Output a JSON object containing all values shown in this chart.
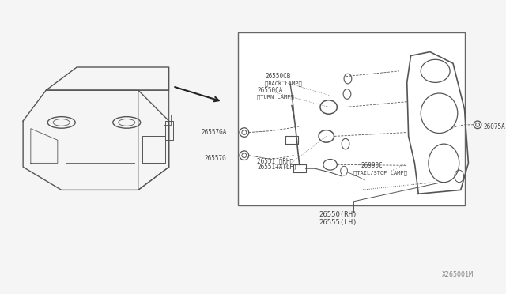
{
  "bg_color": "#f0f0f0",
  "line_color": "#555555",
  "text_color": "#444444",
  "fig_width": 6.4,
  "fig_height": 3.72,
  "diagram_id": "X265001M",
  "labels": {
    "26550RH_26555LH": "26550(RH)\n26555(LH)",
    "26551RH": "26551 〈RH〉\n26551+A(LH)",
    "26990C": "26990C\n〈TAIL/STOP LAMP〉",
    "26557G": "26557G",
    "26557GA": "26557GA",
    "26550CA": "26550CA\n〈TURN LAMP〉",
    "26550CB": "26550CB\n〈BACK LAMP〉",
    "26075A": "26075A"
  }
}
